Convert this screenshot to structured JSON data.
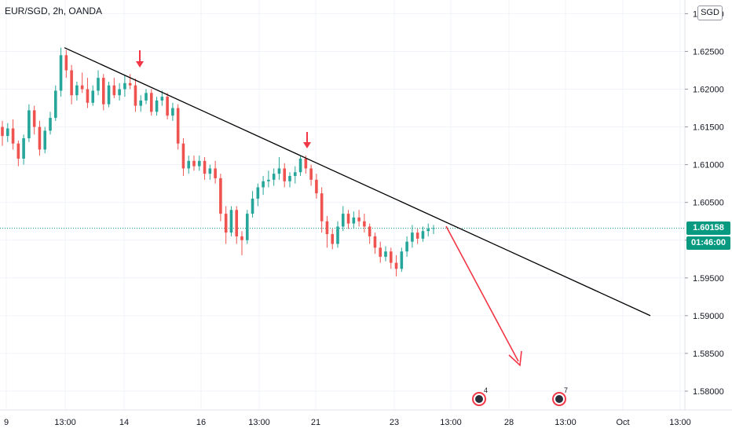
{
  "legend": {
    "symbol": "EUR/SGD, 2h, OANDA"
  },
  "currency_badge": "SGD",
  "price_label": "1.60158",
  "countdown_label": "01:46:00",
  "event_markers": [
    {
      "icon": "calendar-event-icon",
      "count": "4",
      "x_label_near": "28"
    },
    {
      "icon": "calendar-event-icon",
      "count": "7",
      "x_label_near": "13:00"
    }
  ],
  "colors": {
    "up": "#26a69a",
    "down": "#ef5350",
    "trendline": "#000000",
    "arrow": "#f23645",
    "pricebox": "#089981"
  },
  "chart_data": {
    "type": "candlestick",
    "title": "",
    "xlabel": "",
    "ylabel": "",
    "ylim": [
      1.5775,
      1.6315
    ],
    "y_ticks": [
      "1.58000",
      "1.58500",
      "1.59000",
      "1.59500",
      "1.60000",
      "1.60500",
      "1.61000",
      "1.61500",
      "1.62000",
      "1.62500",
      "1.63000"
    ],
    "x_ticks": [
      "9",
      "13:00",
      "14",
      "16",
      "13:00",
      "21",
      "23",
      "13:00",
      "28",
      "13:00",
      "Oct",
      "13:00"
    ],
    "current_price": 1.60158,
    "series": [
      {
        "values": [
          [
            1.615,
            1.6158,
            1.6125,
            1.6138
          ],
          [
            1.6138,
            1.6155,
            1.613,
            1.6148
          ],
          [
            1.6148,
            1.616,
            1.612,
            1.6128
          ],
          [
            1.6128,
            1.6132,
            1.6098,
            1.6108
          ],
          [
            1.6108,
            1.614,
            1.61,
            1.6135
          ],
          [
            1.6135,
            1.618,
            1.613,
            1.6172
          ],
          [
            1.6172,
            1.6178,
            1.614,
            1.615
          ],
          [
            1.615,
            1.6158,
            1.6112,
            1.612
          ],
          [
            1.612,
            1.615,
            1.6115,
            1.6145
          ],
          [
            1.6145,
            1.617,
            1.614,
            1.6162
          ],
          [
            1.6162,
            1.6205,
            1.6158,
            1.6198
          ],
          [
            1.6198,
            1.6255,
            1.619,
            1.6245
          ],
          [
            1.6245,
            1.6252,
            1.6215,
            1.6225
          ],
          [
            1.6225,
            1.6232,
            1.618,
            1.6192
          ],
          [
            1.6192,
            1.621,
            1.6185,
            1.6205
          ],
          [
            1.6205,
            1.6222,
            1.6195,
            1.62
          ],
          [
            1.62,
            1.6215,
            1.6175,
            1.6182
          ],
          [
            1.6182,
            1.6205,
            1.6178,
            1.6198
          ],
          [
            1.6198,
            1.6225,
            1.6192,
            1.6215
          ],
          [
            1.6215,
            1.622,
            1.6172,
            1.618
          ],
          [
            1.618,
            1.621,
            1.6176,
            1.6205
          ],
          [
            1.6205,
            1.6215,
            1.6188,
            1.6192
          ],
          [
            1.6192,
            1.6208,
            1.6185,
            1.62
          ],
          [
            1.62,
            1.6218,
            1.619,
            1.6208
          ],
          [
            1.6208,
            1.622,
            1.62,
            1.6205
          ],
          [
            1.6205,
            1.6214,
            1.617,
            1.6178
          ],
          [
            1.6178,
            1.6192,
            1.617,
            1.6185
          ],
          [
            1.6185,
            1.62,
            1.618,
            1.6195
          ],
          [
            1.6195,
            1.62,
            1.6165,
            1.617
          ],
          [
            1.617,
            1.619,
            1.6165,
            1.6185
          ],
          [
            1.6185,
            1.6198,
            1.6178,
            1.619
          ],
          [
            1.619,
            1.6195,
            1.616,
            1.6165
          ],
          [
            1.6165,
            1.6182,
            1.6158,
            1.6175
          ],
          [
            1.6175,
            1.618,
            1.612,
            1.6128
          ],
          [
            1.6128,
            1.6135,
            1.6085,
            1.6095
          ],
          [
            1.6095,
            1.6112,
            1.6088,
            1.6105
          ],
          [
            1.6105,
            1.6112,
            1.6092,
            1.6098
          ],
          [
            1.6098,
            1.6112,
            1.6092,
            1.6105
          ],
          [
            1.6105,
            1.611,
            1.608,
            1.6088
          ],
          [
            1.6088,
            1.61,
            1.608,
            1.6095
          ],
          [
            1.6095,
            1.6105,
            1.6075,
            1.6082
          ],
          [
            1.6082,
            1.6088,
            1.6025,
            1.6035
          ],
          [
            1.6035,
            1.6045,
            1.5995,
            1.601
          ],
          [
            1.601,
            1.6045,
            1.6005,
            1.604
          ],
          [
            1.604,
            1.6045,
            1.5995,
            1.6005
          ],
          [
            1.6005,
            1.6012,
            1.598,
            1.6
          ],
          [
            1.6,
            1.604,
            1.5995,
            1.6035
          ],
          [
            1.6035,
            1.6065,
            1.603,
            1.6055
          ],
          [
            1.6055,
            1.6075,
            1.6045,
            1.607
          ],
          [
            1.607,
            1.6085,
            1.606,
            1.6078
          ],
          [
            1.6078,
            1.6092,
            1.607,
            1.608
          ],
          [
            1.608,
            1.6095,
            1.6072,
            1.6088
          ],
          [
            1.6088,
            1.611,
            1.608,
            1.6095
          ],
          [
            1.6095,
            1.6102,
            1.607,
            1.6078
          ],
          [
            1.6078,
            1.609,
            1.607,
            1.6085
          ],
          [
            1.6085,
            1.6098,
            1.6075,
            1.609
          ],
          [
            1.609,
            1.6112,
            1.6085,
            1.6108
          ],
          [
            1.6108,
            1.6112,
            1.6088,
            1.6095
          ],
          [
            1.6095,
            1.61,
            1.6072,
            1.608
          ],
          [
            1.608,
            1.6088,
            1.6055,
            1.6062
          ],
          [
            1.6062,
            1.607,
            1.601,
            1.6025
          ],
          [
            1.6025,
            1.6032,
            1.599,
            1.6008
          ],
          [
            1.6008,
            1.6015,
            1.5988,
            1.5995
          ],
          [
            1.5995,
            1.6025,
            1.599,
            1.6018
          ],
          [
            1.6018,
            1.6045,
            1.6012,
            1.6035
          ],
          [
            1.6035,
            1.604,
            1.6015,
            1.6022
          ],
          [
            1.6022,
            1.6038,
            1.6015,
            1.603
          ],
          [
            1.603,
            1.604,
            1.6018,
            1.6025
          ],
          [
            1.6025,
            1.6035,
            1.601,
            1.6018
          ],
          [
            1.6018,
            1.6022,
            1.5995,
            1.6005
          ],
          [
            1.6005,
            1.601,
            1.5982,
            1.599
          ],
          [
            1.599,
            1.5998,
            1.597,
            1.5978
          ],
          [
            1.5978,
            1.5992,
            1.5972,
            1.5985
          ],
          [
            1.5985,
            1.599,
            1.5962,
            1.597
          ],
          [
            1.597,
            1.598,
            1.5952,
            1.5962
          ],
          [
            1.5962,
            1.599,
            1.5958,
            1.5985
          ],
          [
            1.5985,
            1.6005,
            1.5978,
            1.5998
          ],
          [
            1.5998,
            1.602,
            1.599,
            1.601
          ],
          [
            1.601,
            1.6015,
            1.5995,
            1.6002
          ],
          [
            1.6002,
            1.6018,
            1.5998,
            1.6012
          ],
          [
            1.6012,
            1.6022,
            1.6005,
            1.6015
          ],
          [
            1.6015,
            1.602,
            1.6008,
            1.6016
          ]
        ]
      }
    ],
    "trendline": {
      "from": [
        1.6255
      ],
      "to": [
        1.59
      ]
    }
  }
}
